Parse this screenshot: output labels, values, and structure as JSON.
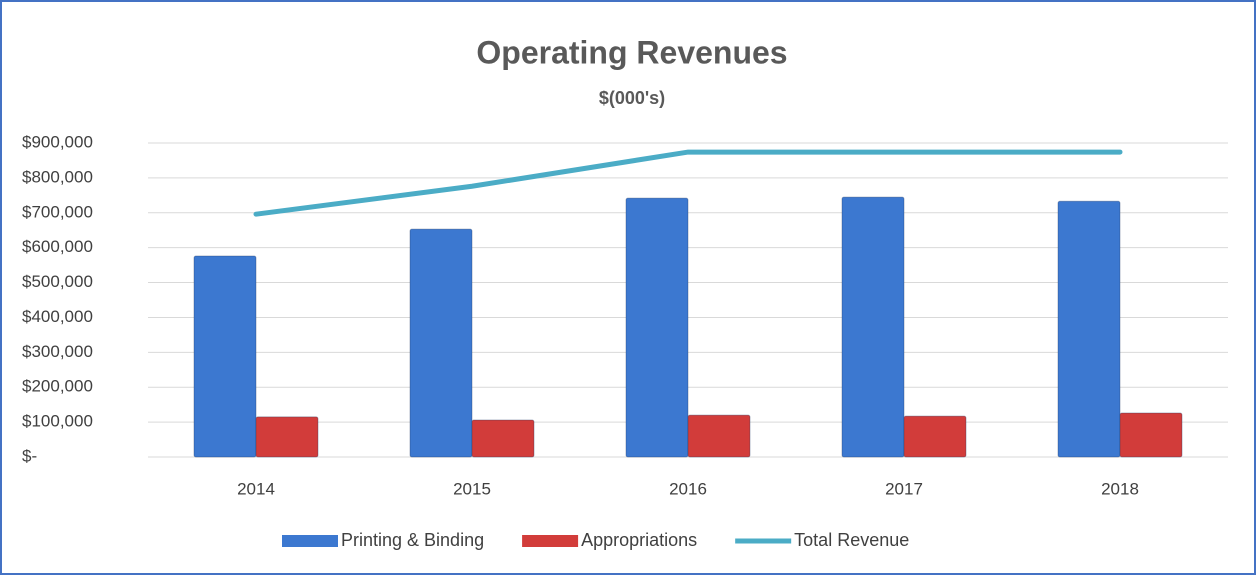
{
  "chart_data": {
    "type": "bar_line",
    "title": "Operating Revenues",
    "subtitle": "$(000's)",
    "categories": [
      "2014",
      "2015",
      "2016",
      "2017",
      "2018"
    ],
    "series": [
      {
        "name": "Printing & Binding",
        "type": "bar",
        "color": "#3c78d0",
        "values": [
          576000,
          653000,
          742000,
          745000,
          733000
        ]
      },
      {
        "name": "Appropriations",
        "type": "bar",
        "color": "#d23c3a",
        "values": [
          115000,
          106000,
          120000,
          117000,
          126000
        ]
      },
      {
        "name": "Total Revenue",
        "type": "line",
        "color": "#4bacc6",
        "values": [
          696000,
          776000,
          874000,
          874000,
          874000
        ]
      }
    ],
    "ylim": [
      0,
      900000
    ],
    "yticks": [
      {
        "value": 0,
        "label": "$-"
      },
      {
        "value": 100000,
        "label": "$100,000"
      },
      {
        "value": 200000,
        "label": "$200,000"
      },
      {
        "value": 300000,
        "label": "$300,000"
      },
      {
        "value": 400000,
        "label": "$400,000"
      },
      {
        "value": 500000,
        "label": "$500,000"
      },
      {
        "value": 600000,
        "label": "$600,000"
      },
      {
        "value": 700000,
        "label": "$700,000"
      },
      {
        "value": 800000,
        "label": "$800,000"
      },
      {
        "value": 900000,
        "label": "$900,000"
      }
    ],
    "grid": true,
    "legend": "bottom"
  }
}
